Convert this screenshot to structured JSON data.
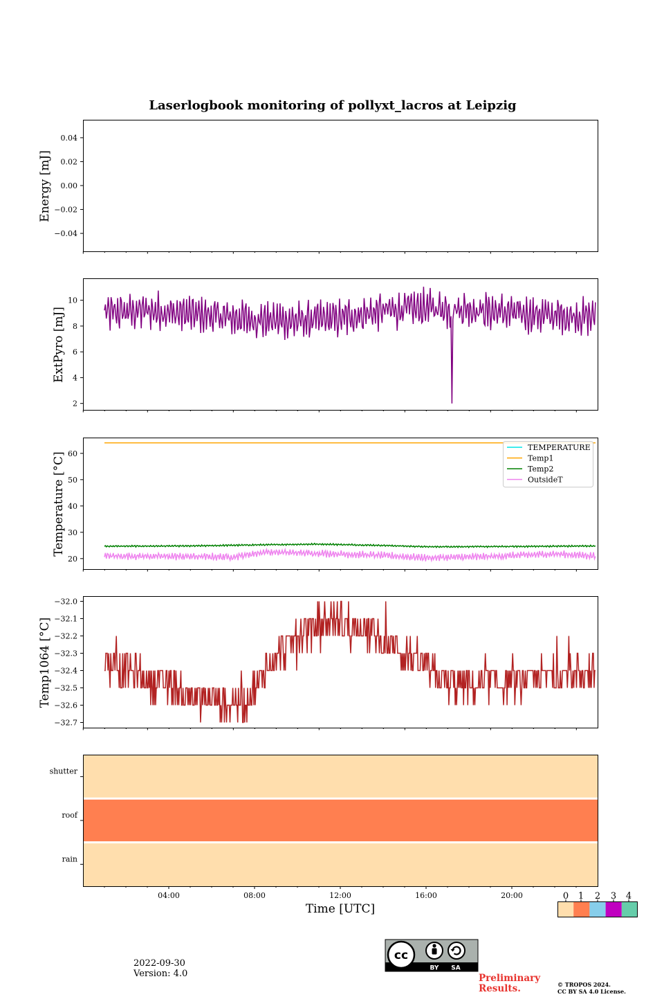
{
  "title": "Laserlogbook monitoring of pollyxt_lacros at Leipzig",
  "date": "2022-09-30",
  "version": "Version: 4.0",
  "preliminary": [
    "Preliminary",
    "Results."
  ],
  "copyright": [
    "© TROPOS 2024.",
    "CC BY SA 4.0 License."
  ],
  "license_badge": {
    "cc": "cc",
    "by": "BY",
    "sa": "SA"
  },
  "chart_data": [
    {
      "type": "line",
      "panel": "energy",
      "ylabel": "Energy [mJ]",
      "ylim": [
        -0.055,
        0.055
      ],
      "yticks": [
        0.04,
        0.02,
        0.0,
        -0.02,
        -0.04
      ],
      "ytick_labels": [
        "0.04",
        "0.02",
        "0.00",
        "−0.02",
        "−0.04"
      ],
      "series": []
    },
    {
      "type": "line",
      "panel": "extpyro",
      "ylabel": "ExtPyro [mJ]",
      "ylim": [
        1.5,
        11.7
      ],
      "yticks": [
        10,
        8,
        6,
        4,
        2
      ],
      "ytick_labels": [
        "10",
        "8",
        "6",
        "4",
        "2"
      ],
      "x_range_hours": [
        1.0,
        23.9
      ],
      "mean_profile": [
        [
          1,
          9.0
        ],
        [
          3,
          9.2
        ],
        [
          6,
          8.8
        ],
        [
          8,
          8.5
        ],
        [
          10,
          8.4
        ],
        [
          12,
          8.6
        ],
        [
          14,
          9.2
        ],
        [
          16,
          9.4
        ],
        [
          18,
          9.3
        ],
        [
          20,
          9.0
        ],
        [
          22,
          8.8
        ],
        [
          23.9,
          8.7
        ]
      ],
      "oscillation_amplitude": 1.0,
      "spike": {
        "x_hours": 17.2,
        "value": 2.0
      },
      "color": "#800080"
    },
    {
      "type": "line",
      "panel": "temperature",
      "ylabel": "Temperature [°C]",
      "ylim": [
        16,
        66
      ],
      "yticks": [
        60,
        50,
        40,
        30,
        20
      ],
      "ytick_labels": [
        "60",
        "50",
        "40",
        "30",
        "20"
      ],
      "legend_placement": "upper right",
      "series": [
        {
          "name": "TEMPERATURE",
          "color": "#00e5e5",
          "values": []
        },
        {
          "name": "Temp1",
          "color": "#ffa500",
          "constant": 64
        },
        {
          "name": "Temp2",
          "color": "#008000",
          "mean_profile": [
            [
              1,
              24.7
            ],
            [
              5,
              24.8
            ],
            [
              8,
              25.2
            ],
            [
              11,
              25.5
            ],
            [
              14,
              25.0
            ],
            [
              16,
              24.5
            ],
            [
              20,
              24.6
            ],
            [
              23.9,
              24.8
            ]
          ]
        },
        {
          "name": "OutsideT",
          "color": "#ee82ee",
          "mean_profile": [
            [
              1,
              21.0
            ],
            [
              5,
              20.8
            ],
            [
              7,
              20.6
            ],
            [
              8.5,
              22.5
            ],
            [
              11,
              22.0
            ],
            [
              14,
              21.2
            ],
            [
              16,
              20.3
            ],
            [
              19,
              20.8
            ],
            [
              22,
              21.8
            ],
            [
              23.9,
              21.0
            ]
          ]
        }
      ]
    },
    {
      "type": "line",
      "panel": "temp1064",
      "ylabel": "Temp1064 [°C]",
      "ylim": [
        -32.73,
        -31.97
      ],
      "yticks": [
        -32.0,
        -32.1,
        -32.2,
        -32.3,
        -32.4,
        -32.5,
        -32.6,
        -32.7
      ],
      "ytick_labels": [
        "−32.0",
        "−32.1",
        "−32.2",
        "−32.3",
        "−32.4",
        "−32.5",
        "−32.6",
        "−32.7"
      ],
      "quantization": 0.1,
      "mean_profile": [
        [
          1,
          -32.35
        ],
        [
          3,
          -32.45
        ],
        [
          5,
          -32.55
        ],
        [
          7.5,
          -32.6
        ],
        [
          8.5,
          -32.4
        ],
        [
          10,
          -32.2
        ],
        [
          11.5,
          -32.1
        ],
        [
          13,
          -32.15
        ],
        [
          15,
          -32.3
        ],
        [
          16.5,
          -32.45
        ],
        [
          18,
          -32.5
        ],
        [
          21,
          -32.45
        ],
        [
          23.9,
          -32.4
        ]
      ],
      "color": "#b22222"
    },
    {
      "type": "heatmap",
      "panel": "status",
      "xlabel": "Time [UTC]",
      "xlim_hours": [
        0,
        24
      ],
      "xticks": [
        "04:00",
        "08:00",
        "12:00",
        "16:00",
        "20:00"
      ],
      "xtick_hours": [
        4,
        8,
        12,
        16,
        20
      ],
      "rows": [
        "shutter",
        "roof",
        "rain"
      ],
      "row_values": [
        0,
        1,
        0
      ],
      "colorbar": {
        "ticks": [
          "0",
          "1",
          "2",
          "3",
          "4"
        ],
        "colors": [
          "#ffdead",
          "#ff7f50",
          "#87ceeb",
          "#c000c0",
          "#66cdaa"
        ]
      }
    }
  ]
}
